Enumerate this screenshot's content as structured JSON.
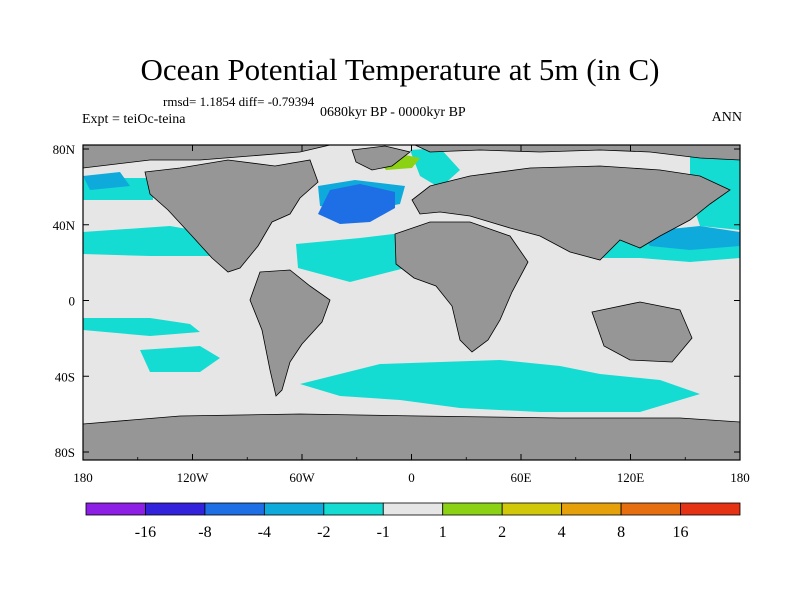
{
  "header": {
    "title": "Ocean Potential Temperature at 5m (in C)",
    "stats": "rmsd= 1.1854 diff= -0.79394",
    "experiment": "Expt = teiOc-teina",
    "period": "0680kyr BP - 0000kyr BP",
    "season": "ANN"
  },
  "axes": {
    "x_ticks": [
      "180",
      "120W",
      "60W",
      "0",
      "60E",
      "120E",
      "180"
    ],
    "y_ticks": [
      "80N",
      "40N",
      "0",
      "40S",
      "80S"
    ]
  },
  "colorbar": {
    "colors": [
      "#8c1ee6",
      "#3222dc",
      "#1e6ee6",
      "#0faadc",
      "#14dcd2",
      "#e6e6e6",
      "#8cd214",
      "#d2c80a",
      "#e6a00a",
      "#e66e0f",
      "#e63214"
    ],
    "labels": [
      "-16",
      "-8",
      "-4",
      "-2",
      "-1",
      "1",
      "2",
      "4",
      "8",
      "16"
    ]
  },
  "colors": {
    "land": "#969696",
    "ocean_neutral": "#e6e6e6",
    "cool_1": "#14dcd2",
    "cool_2": "#0faadc",
    "cool_3": "#1e6ee6",
    "warm_1": "#8cd214"
  }
}
